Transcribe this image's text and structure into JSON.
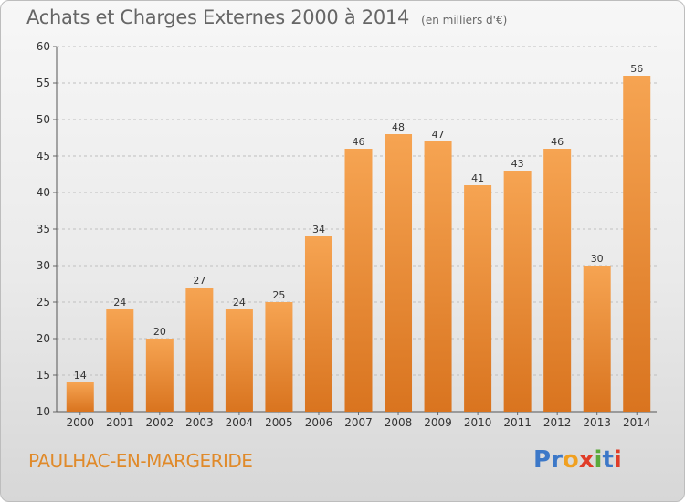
{
  "header": {
    "title": "Achats et Charges Externes 2000 à 2014",
    "unit": "(en milliers d'€)"
  },
  "footer": {
    "commune": "PAULHAC-EN-MARGERIDE"
  },
  "logo": {
    "text": "Proxiti",
    "letters": [
      "P",
      "r",
      "o",
      "x",
      "i",
      "t",
      "i"
    ],
    "colors": [
      "#3c78c8",
      "#3c78c8",
      "#f0a020",
      "#e03c28",
      "#5aaa3c",
      "#3c78c8",
      "#e03c28"
    ]
  },
  "colors": {
    "bar_top": "#f6a452",
    "bar_bottom": "#d9741f",
    "grid": "#bfbfbf",
    "commune_text": "#e08a2a"
  },
  "chart_data": {
    "type": "bar",
    "title": "Achats et Charges Externes 2000 à 2014",
    "subtitle": "(en milliers d'€)",
    "xlabel": "",
    "ylabel": "",
    "categories": [
      "2000",
      "2001",
      "2002",
      "2003",
      "2004",
      "2005",
      "2006",
      "2007",
      "2008",
      "2009",
      "2010",
      "2011",
      "2012",
      "2013",
      "2014"
    ],
    "values": [
      14,
      24,
      20,
      27,
      24,
      25,
      34,
      46,
      48,
      47,
      41,
      43,
      46,
      30,
      56
    ],
    "ylim": [
      10,
      60
    ],
    "yticks": [
      10,
      15,
      20,
      25,
      30,
      35,
      40,
      45,
      50,
      55,
      60
    ],
    "grid": true,
    "legend": "none"
  }
}
